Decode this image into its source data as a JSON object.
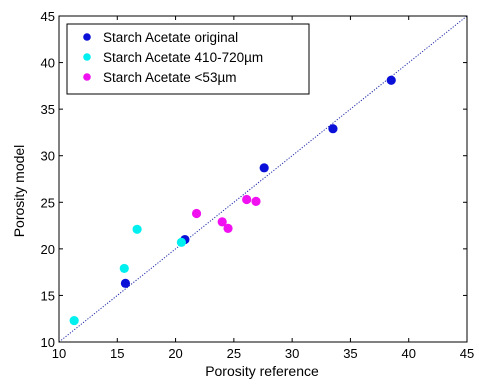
{
  "chart_data": {
    "type": "scatter",
    "title": "",
    "xlabel": "Porosity reference",
    "ylabel": "Porosity model",
    "xlim": [
      10,
      45
    ],
    "ylim": [
      10,
      45
    ],
    "xticks": [
      10,
      15,
      20,
      25,
      30,
      35,
      40,
      45
    ],
    "yticks": [
      10,
      15,
      20,
      25,
      30,
      35,
      40,
      45
    ],
    "xtick_labels": [
      "10",
      "15",
      "20",
      "25",
      "30",
      "35",
      "40",
      "45"
    ],
    "ytick_labels": [
      "10",
      "15",
      "20",
      "25",
      "30",
      "35",
      "40",
      "45"
    ],
    "grid": false,
    "legend_position": "top-left",
    "reference_line": {
      "style": "dotted",
      "color": "#1f2aa8",
      "x": [
        10,
        45
      ],
      "y": [
        10,
        45
      ]
    },
    "series": [
      {
        "name": "Starch Acetate original",
        "color": "#0a10d8",
        "points": [
          [
            15.7,
            16.3
          ],
          [
            20.8,
            21.0
          ],
          [
            27.6,
            28.7
          ],
          [
            33.5,
            32.9
          ],
          [
            38.5,
            38.1
          ]
        ]
      },
      {
        "name": "Starch Acetate 410-720µm",
        "color": "#00f0f0",
        "points": [
          [
            11.3,
            12.3
          ],
          [
            15.6,
            17.9
          ],
          [
            16.7,
            22.1
          ],
          [
            20.5,
            20.7
          ]
        ]
      },
      {
        "name": "Starch Acetate <53µm",
        "color": "#f010f0",
        "points": [
          [
            21.8,
            23.8
          ],
          [
            24.0,
            22.9
          ],
          [
            24.5,
            22.2
          ],
          [
            26.1,
            25.3
          ],
          [
            26.9,
            25.1
          ]
        ]
      }
    ]
  }
}
